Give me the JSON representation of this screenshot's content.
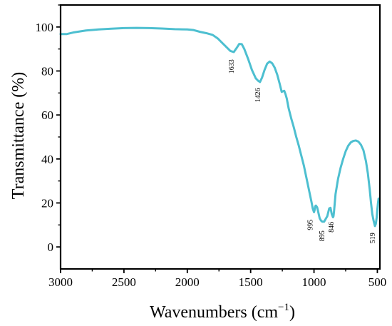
{
  "chart_data": {
    "type": "line",
    "xlabel": "Wavenumbers (cm",
    "xlabel_sup": "−1",
    "xlabel_close": ")",
    "ylabel": "Transmittance (%)",
    "xlim": [
      3000,
      480
    ],
    "ylim": [
      -10,
      110
    ],
    "x_reversed": true,
    "grid": false,
    "legend": "none",
    "line_color": "#4dbfd0",
    "x_ticks": [
      3000,
      2500,
      2000,
      1500,
      1000,
      500
    ],
    "x_tick_labels": [
      "3000",
      "2500",
      "2000",
      "1500",
      "1000",
      "500"
    ],
    "y_ticks": [
      0,
      20,
      40,
      60,
      80,
      100
    ],
    "y_tick_labels": [
      "0",
      "20",
      "40",
      "60",
      "80",
      "100"
    ],
    "series": [
      {
        "x": [
          3000,
          2950,
          2900,
          2800,
          2700,
          2600,
          2500,
          2400,
          2300,
          2200,
          2100,
          2000,
          1950,
          1900,
          1850,
          1800,
          1760,
          1720,
          1690,
          1660,
          1633,
          1610,
          1590,
          1570,
          1550,
          1520,
          1490,
          1460,
          1440,
          1426,
          1410,
          1390,
          1370,
          1350,
          1330,
          1310,
          1290,
          1270,
          1255,
          1245,
          1235,
          1225,
          1215,
          1200,
          1180,
          1160,
          1140,
          1120,
          1100,
          1080,
          1060,
          1040,
          1020,
          1010,
          1000,
          995,
          990,
          985,
          975,
          965,
          955,
          945,
          935,
          920,
          910,
          895,
          880,
          870,
          860,
          850,
          846,
          842,
          830,
          810,
          790,
          770,
          750,
          730,
          710,
          690,
          670,
          650,
          630,
          610,
          590,
          575,
          560,
          550,
          540,
          530,
          519,
          512,
          505,
          500,
          495,
          490
        ],
        "y": [
          96.8,
          96.8,
          97.5,
          98.4,
          98.9,
          99.2,
          99.5,
          99.6,
          99.5,
          99.3,
          99.0,
          98.9,
          98.6,
          97.8,
          97.2,
          96.4,
          94.8,
          92.5,
          90.8,
          89.1,
          88.6,
          90.5,
          92.3,
          92.2,
          90.0,
          85.5,
          80.5,
          76.7,
          75.5,
          75.0,
          77.0,
          80.5,
          83.3,
          84.3,
          83.5,
          81.5,
          78.3,
          74.0,
          70.5,
          70.8,
          71.0,
          69.5,
          67.5,
          63.0,
          58.5,
          54.5,
          50.0,
          46.0,
          41.5,
          37.0,
          31.5,
          26.0,
          20.5,
          17.5,
          15.8,
          16.8,
          18.5,
          18.8,
          18.0,
          15.5,
          13.0,
          12.0,
          11.5,
          11.5,
          12.5,
          14.0,
          17.5,
          17.8,
          15.0,
          13.5,
          14.0,
          16.0,
          24.0,
          31.0,
          36.0,
          40.0,
          43.5,
          46.0,
          47.5,
          48.2,
          48.4,
          47.9,
          46.5,
          44.0,
          39.0,
          33.5,
          26.0,
          20.0,
          15.0,
          12.0,
          9.5,
          10.5,
          13.5,
          17.0,
          20.0,
          22.0
        ]
      }
    ],
    "annotations": [
      {
        "label": "1633",
        "x": 1633,
        "y": 82
      },
      {
        "label": "1426",
        "x": 1426,
        "y": 69
      },
      {
        "label": "995",
        "x": 1012,
        "y": 10
      },
      {
        "label": "895",
        "x": 920,
        "y": 5
      },
      {
        "label": "846",
        "x": 846,
        "y": 9
      },
      {
        "label": "519",
        "x": 519,
        "y": 4
      }
    ]
  }
}
